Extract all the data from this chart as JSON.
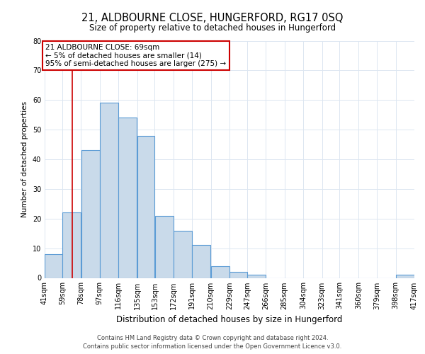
{
  "title1": "21, ALDBOURNE CLOSE, HUNGERFORD, RG17 0SQ",
  "title2": "Size of property relative to detached houses in Hungerford",
  "xlabel": "Distribution of detached houses by size in Hungerford",
  "ylabel": "Number of detached properties",
  "footer1": "Contains HM Land Registry data © Crown copyright and database right 2024.",
  "footer2": "Contains public sector information licensed under the Open Government Licence v3.0.",
  "annotation_line1": "21 ALDBOURNE CLOSE: 69sqm",
  "annotation_line2": "← 5% of detached houses are smaller (14)",
  "annotation_line3": "95% of semi-detached houses are larger (275) →",
  "bar_edges": [
    41,
    59,
    78,
    97,
    116,
    135,
    153,
    172,
    191,
    210,
    229,
    247,
    266,
    285,
    304,
    323,
    341,
    360,
    379,
    398,
    417
  ],
  "bar_heights": [
    8,
    22,
    43,
    59,
    54,
    48,
    21,
    16,
    11,
    4,
    2,
    1,
    0,
    0,
    0,
    0,
    0,
    0,
    0,
    1
  ],
  "bar_color": "#c9daea",
  "bar_edge_color": "#5b9bd5",
  "marker_x": 69,
  "marker_color": "#cc0000",
  "ylim": [
    0,
    80
  ],
  "xlim": [
    41,
    417
  ],
  "tick_labels": [
    "41sqm",
    "59sqm",
    "78sqm",
    "97sqm",
    "116sqm",
    "135sqm",
    "153sqm",
    "172sqm",
    "191sqm",
    "210sqm",
    "229sqm",
    "247sqm",
    "266sqm",
    "285sqm",
    "304sqm",
    "323sqm",
    "341sqm",
    "360sqm",
    "379sqm",
    "398sqm",
    "417sqm"
  ],
  "yticks": [
    0,
    10,
    20,
    30,
    40,
    50,
    60,
    70,
    80
  ],
  "bg_color": "#ffffff",
  "grid_color": "#dce6f1",
  "title1_fontsize": 10.5,
  "title2_fontsize": 8.5,
  "xlabel_fontsize": 8.5,
  "ylabel_fontsize": 7.5,
  "tick_fontsize": 7,
  "footer_fontsize": 6,
  "annot_fontsize": 7.5
}
